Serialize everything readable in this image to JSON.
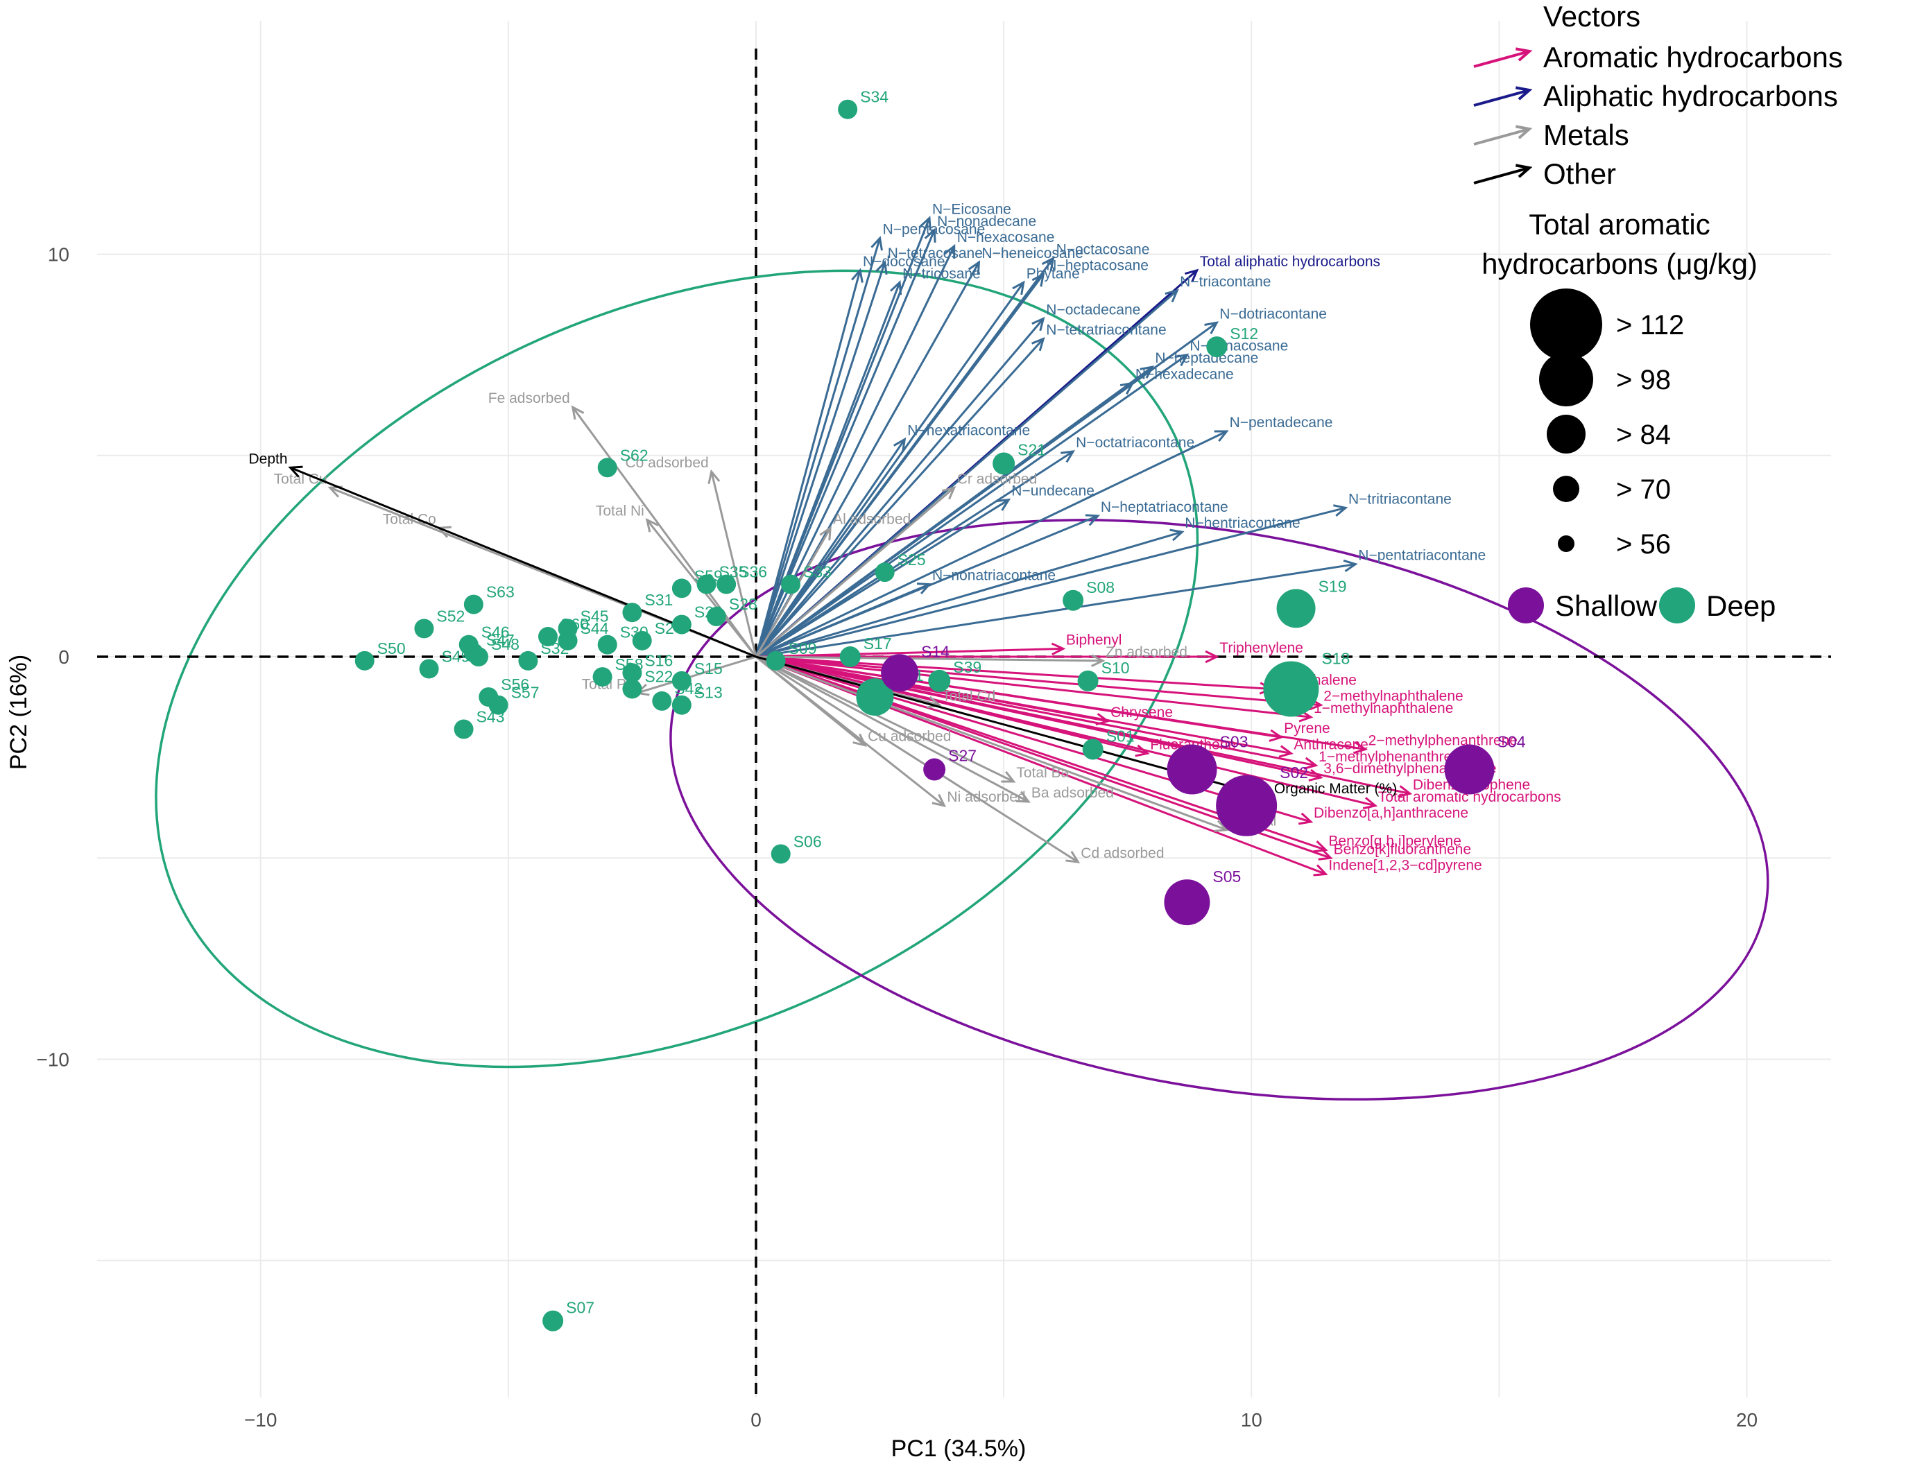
{
  "colors": {
    "aromatic": "#d6137a",
    "aliphatic_total": "#1a1a8a",
    "aliphatic": "#3a6b94",
    "metal": "#9a9a9a",
    "other": "#000000",
    "shallow": "#7b119b",
    "deep": "#22a57a"
  },
  "chart_data": {
    "type": "scatter",
    "title": "",
    "xlabel": "PC1 (34.5%)",
    "ylabel": "PC2 (16%)",
    "xlim": [
      -13.3,
      21.7
    ],
    "ylim": [
      -18.4,
      15.8
    ],
    "xticks": [
      {
        "v": -10,
        "label": "−10"
      },
      {
        "v": 0,
        "label": "0"
      },
      {
        "v": 10,
        "label": "10"
      },
      {
        "v": 20,
        "label": "20"
      }
    ],
    "yticks": [
      {
        "v": -10,
        "label": "−10"
      },
      {
        "v": 0,
        "label": "0"
      },
      {
        "v": 10,
        "label": "10"
      }
    ],
    "minor_x": [
      -5,
      5,
      15
    ],
    "minor_y": [
      -15,
      -5,
      5
    ],
    "ellipses": [
      {
        "group": "deep",
        "cx": -1.6,
        "cy": -0.3,
        "rx": 11.1,
        "ry": 7.2,
        "angle": 25
      },
      {
        "group": "shallow",
        "cx": 9.35,
        "cy": -3.8,
        "rx": 11.2,
        "ry": 5.6,
        "angle": -10
      }
    ],
    "vectors": [
      {
        "label": "Total aliphatic hydrocarbons",
        "x": 8.9,
        "y": 9.6,
        "cat": "aliphatic_total"
      },
      {
        "label": "N−Eicosane",
        "x": 3.5,
        "y": 10.9,
        "cat": "aliphatic"
      },
      {
        "label": "N−nonadecane",
        "x": 3.6,
        "y": 10.6,
        "cat": "aliphatic"
      },
      {
        "label": "N−pentacosane",
        "x": 2.5,
        "y": 10.4,
        "cat": "aliphatic"
      },
      {
        "label": "N−hexacosane",
        "x": 4.0,
        "y": 10.2,
        "cat": "aliphatic"
      },
      {
        "label": "N−octacosane",
        "x": 6.0,
        "y": 9.9,
        "cat": "aliphatic"
      },
      {
        "label": "N−heneicosane",
        "x": 4.5,
        "y": 9.8,
        "cat": "aliphatic"
      },
      {
        "label": "N−tetracosane",
        "x": 2.6,
        "y": 9.8,
        "cat": "aliphatic"
      },
      {
        "label": "N−heptacosane",
        "x": 5.8,
        "y": 9.5,
        "cat": "aliphatic"
      },
      {
        "label": "N−docosane",
        "x": 2.1,
        "y": 9.6,
        "cat": "aliphatic"
      },
      {
        "label": "N−tricosane",
        "x": 2.9,
        "y": 9.3,
        "cat": "aliphatic"
      },
      {
        "label": "Phytane",
        "x": 5.4,
        "y": 9.3,
        "cat": "aliphatic"
      },
      {
        "label": "N−triacontane",
        "x": 8.5,
        "y": 9.1,
        "cat": "aliphatic"
      },
      {
        "label": "N−octadecane",
        "x": 5.8,
        "y": 8.4,
        "cat": "aliphatic"
      },
      {
        "label": "N−dotriacontane",
        "x": 9.3,
        "y": 8.3,
        "cat": "aliphatic"
      },
      {
        "label": "N−tetratriacontane",
        "x": 5.8,
        "y": 7.9,
        "cat": "aliphatic"
      },
      {
        "label": "N−nonacosane",
        "x": 8.7,
        "y": 7.5,
        "cat": "aliphatic"
      },
      {
        "label": "N−heptadecane",
        "x": 8.0,
        "y": 7.2,
        "cat": "aliphatic"
      },
      {
        "label": "N−hexadecane",
        "x": 7.6,
        "y": 6.8,
        "cat": "aliphatic"
      },
      {
        "label": "N−hexatriacontane",
        "x": 3.0,
        "y": 5.4,
        "cat": "aliphatic"
      },
      {
        "label": "N−pentadecane",
        "x": 9.5,
        "y": 5.6,
        "cat": "aliphatic"
      },
      {
        "label": "N−octatriacontane",
        "x": 6.4,
        "y": 5.1,
        "cat": "aliphatic"
      },
      {
        "label": "N−undecane",
        "x": 5.1,
        "y": 3.9,
        "cat": "aliphatic"
      },
      {
        "label": "N−heptatriacontane",
        "x": 6.9,
        "y": 3.5,
        "cat": "aliphatic"
      },
      {
        "label": "N−hentriacontane",
        "x": 8.6,
        "y": 3.1,
        "cat": "aliphatic"
      },
      {
        "label": "N−tritriacontane",
        "x": 11.9,
        "y": 3.7,
        "cat": "aliphatic"
      },
      {
        "label": "N−pentatriacontane",
        "x": 12.1,
        "y": 2.3,
        "cat": "aliphatic"
      },
      {
        "label": "N−nonatriacontane",
        "x": 3.5,
        "y": 1.8,
        "cat": "aliphatic"
      },
      {
        "label": "Biphenyl",
        "x": 6.2,
        "y": 0.2,
        "cat": "aromatic"
      },
      {
        "label": "Triphenylene",
        "x": 9.3,
        "y": 0.0,
        "cat": "aromatic"
      },
      {
        "label": "Naphthalene",
        "x": 10.4,
        "y": -0.8,
        "cat": "aromatic"
      },
      {
        "label": "2−methylnaphthalene",
        "x": 11.4,
        "y": -1.2,
        "cat": "aromatic"
      },
      {
        "label": "1−methylnaphthalene",
        "x": 11.2,
        "y": -1.5,
        "cat": "aromatic"
      },
      {
        "label": "Chrysene",
        "x": 7.1,
        "y": -1.6,
        "cat": "aromatic"
      },
      {
        "label": "Pyrene",
        "x": 10.6,
        "y": -2.0,
        "cat": "aromatic"
      },
      {
        "label": "2−methylphenanthrene",
        "x": 12.3,
        "y": -2.3,
        "cat": "aromatic"
      },
      {
        "label": "Anthracene",
        "x": 10.8,
        "y": -2.4,
        "cat": "aromatic"
      },
      {
        "label": "1−methylphenanthrene",
        "x": 11.3,
        "y": -2.7,
        "cat": "aromatic"
      },
      {
        "label": "Fluoranthene",
        "x": 7.9,
        "y": -2.4,
        "cat": "aromatic"
      },
      {
        "label": "3,6−dimethylphenanthrene",
        "x": 11.4,
        "y": -3.0,
        "cat": "aromatic"
      },
      {
        "label": "Dibenzothiophene",
        "x": 13.2,
        "y": -3.4,
        "cat": "aromatic"
      },
      {
        "label": "Total aromatic hydrocarbons",
        "x": 12.5,
        "y": -3.7,
        "cat": "aromatic"
      },
      {
        "label": "Dibenzo[a,h]anthracene",
        "x": 11.2,
        "y": -4.1,
        "cat": "aromatic"
      },
      {
        "label": "Benzo[g,h,i]perylene",
        "x": 11.5,
        "y": -4.8,
        "cat": "aromatic"
      },
      {
        "label": "Benzo[k]fluoranthene",
        "x": 11.6,
        "y": -5.0,
        "cat": "aromatic"
      },
      {
        "label": "Indene[1,2,3−cd]pyrene",
        "x": 11.5,
        "y": -5.4,
        "cat": "aromatic"
      },
      {
        "label": "Fe adsorbed",
        "x": -3.7,
        "y": 6.2,
        "cat": "metal"
      },
      {
        "label": "Total Cu",
        "x": -8.6,
        "y": 4.2,
        "cat": "metal"
      },
      {
        "label": "Total Co",
        "x": -6.4,
        "y": 3.2,
        "cat": "metal"
      },
      {
        "label": "Co adsorbed",
        "x": -0.9,
        "y": 4.6,
        "cat": "metal"
      },
      {
        "label": "Total Ni",
        "x": -2.2,
        "y": 3.4,
        "cat": "metal"
      },
      {
        "label": "Al adsorbed",
        "x": 1.5,
        "y": 3.2,
        "cat": "metal"
      },
      {
        "label": "Cr adsorbed",
        "x": 4.0,
        "y": 4.2,
        "cat": "metal"
      },
      {
        "label": "Total Pb",
        "x": -2.4,
        "y": -0.9,
        "cat": "metal"
      },
      {
        "label": "Zn adsorbed",
        "x": 7.0,
        "y": -0.1,
        "cat": "metal"
      },
      {
        "label": "Total Cd",
        "x": 3.7,
        "y": -1.2,
        "cat": "metal"
      },
      {
        "label": "Cu adsorbed",
        "x": 2.2,
        "y": -2.2,
        "cat": "metal"
      },
      {
        "label": "Ni adsorbed",
        "x": 3.8,
        "y": -3.7,
        "cat": "metal"
      },
      {
        "label": "Total Ba",
        "x": 5.2,
        "y": -3.1,
        "cat": "metal"
      },
      {
        "label": "Ba adsorbed",
        "x": 5.5,
        "y": -3.6,
        "cat": "metal"
      },
      {
        "label": "Cd adsorbed",
        "x": 6.5,
        "y": -5.1,
        "cat": "metal"
      },
      {
        "label": "Total Al",
        "x": 9.5,
        "y": -4.3,
        "cat": "metal"
      },
      {
        "label": "Depth",
        "x": -9.4,
        "y": 4.7,
        "cat": "other"
      },
      {
        "label": "Organic Matter (%)",
        "x": 10.4,
        "y": -3.5,
        "cat": "other"
      }
    ],
    "points": [
      {
        "label": "S34",
        "x": 1.85,
        "y": 13.6,
        "group": "deep",
        "taromatic": 60
      },
      {
        "label": "S12",
        "x": 9.3,
        "y": 7.7,
        "group": "deep",
        "taromatic": 62
      },
      {
        "label": "S62",
        "x": -3.0,
        "y": 4.7,
        "group": "deep",
        "taromatic": 60
      },
      {
        "label": "S21",
        "x": 5.0,
        "y": 4.8,
        "group": "deep",
        "taromatic": 64
      },
      {
        "label": "S63",
        "x": -5.7,
        "y": 1.3,
        "group": "deep",
        "taromatic": 60
      },
      {
        "label": "S52",
        "x": -6.7,
        "y": 0.7,
        "group": "deep",
        "taromatic": 60
      },
      {
        "label": "S46",
        "x": -5.8,
        "y": 0.3,
        "group": "deep",
        "taromatic": 60
      },
      {
        "label": "S47",
        "x": -5.7,
        "y": 0.1,
        "group": "deep",
        "taromatic": 60
      },
      {
        "label": "S48",
        "x": -5.6,
        "y": 0.0,
        "group": "deep",
        "taromatic": 60
      },
      {
        "label": "S49",
        "x": -6.6,
        "y": -0.3,
        "group": "deep",
        "taromatic": 60
      },
      {
        "label": "S50",
        "x": -7.9,
        "y": -0.1,
        "group": "deep",
        "taromatic": 60
      },
      {
        "label": "S45",
        "x": -3.8,
        "y": 0.7,
        "group": "deep",
        "taromatic": 60
      },
      {
        "label": "S60",
        "x": -4.2,
        "y": 0.5,
        "group": "deep",
        "taromatic": 60
      },
      {
        "label": "S44",
        "x": -3.8,
        "y": 0.4,
        "group": "deep",
        "taromatic": 60
      },
      {
        "label": "S32",
        "x": -4.6,
        "y": -0.1,
        "group": "deep",
        "taromatic": 60
      },
      {
        "label": "S30",
        "x": -3.0,
        "y": 0.3,
        "group": "deep",
        "taromatic": 60
      },
      {
        "label": "S58",
        "x": -3.1,
        "y": -0.5,
        "group": "deep",
        "taromatic": 60
      },
      {
        "label": "S56",
        "x": -5.4,
        "y": -1.0,
        "group": "deep",
        "taromatic": 60
      },
      {
        "label": "S57",
        "x": -5.2,
        "y": -1.2,
        "group": "deep",
        "taromatic": 60
      },
      {
        "label": "S43",
        "x": -5.9,
        "y": -1.8,
        "group": "deep",
        "taromatic": 60
      },
      {
        "label": "S31",
        "x": -2.5,
        "y": 1.1,
        "group": "deep",
        "taromatic": 60
      },
      {
        "label": "S24",
        "x": -2.3,
        "y": 0.4,
        "group": "deep",
        "taromatic": 60
      },
      {
        "label": "S16",
        "x": -2.5,
        "y": -0.4,
        "group": "deep",
        "taromatic": 60
      },
      {
        "label": "S22",
        "x": -2.5,
        "y": -0.8,
        "group": "deep",
        "taromatic": 60
      },
      {
        "label": "S42",
        "x": -1.9,
        "y": -1.1,
        "group": "deep",
        "taromatic": 60
      },
      {
        "label": "S13",
        "x": -1.5,
        "y": -1.2,
        "group": "deep",
        "taromatic": 60
      },
      {
        "label": "S15",
        "x": -1.5,
        "y": -0.6,
        "group": "deep",
        "taromatic": 60
      },
      {
        "label": "S59",
        "x": -1.5,
        "y": 1.7,
        "group": "deep",
        "taromatic": 60
      },
      {
        "label": "S35",
        "x": -1.0,
        "y": 1.8,
        "group": "deep",
        "taromatic": 60
      },
      {
        "label": "S36",
        "x": -0.6,
        "y": 1.8,
        "group": "deep",
        "taromatic": 60
      },
      {
        "label": "S28",
        "x": -0.8,
        "y": 1.0,
        "group": "deep",
        "taromatic": 60
      },
      {
        "label": "S20",
        "x": -1.5,
        "y": 0.8,
        "group": "deep",
        "taromatic": 60
      },
      {
        "label": "S33",
        "x": 0.7,
        "y": 1.8,
        "group": "deep",
        "taromatic": 60
      },
      {
        "label": "S25",
        "x": 2.6,
        "y": 2.1,
        "group": "deep",
        "taromatic": 60
      },
      {
        "label": "S08",
        "x": 6.4,
        "y": 1.4,
        "group": "deep",
        "taromatic": 62
      },
      {
        "label": "S19",
        "x": 10.9,
        "y": 1.2,
        "group": "deep",
        "taromatic": 88
      },
      {
        "label": "S18",
        "x": 10.8,
        "y": -0.8,
        "group": "deep",
        "taromatic": 112
      },
      {
        "label": "S17",
        "x": 1.9,
        "y": 0.0,
        "group": "deep",
        "taromatic": 62
      },
      {
        "label": "S09",
        "x": 0.4,
        "y": -0.1,
        "group": "deep",
        "taromatic": 60
      },
      {
        "label": "S11",
        "x": 2.4,
        "y": -1.0,
        "group": "deep",
        "taromatic": 86
      },
      {
        "label": "S39",
        "x": 3.7,
        "y": -0.6,
        "group": "deep",
        "taromatic": 64
      },
      {
        "label": "S10",
        "x": 6.7,
        "y": -0.6,
        "group": "deep",
        "taromatic": 62
      },
      {
        "label": "S01",
        "x": 6.8,
        "y": -2.3,
        "group": "deep",
        "taromatic": 62
      },
      {
        "label": "S06",
        "x": 0.5,
        "y": -4.9,
        "group": "deep",
        "taromatic": 60
      },
      {
        "label": "S07",
        "x": -4.1,
        "y": -16.5,
        "group": "deep",
        "taromatic": 62
      },
      {
        "label": "S14",
        "x": 2.9,
        "y": -0.4,
        "group": "shallow",
        "taromatic": 86
      },
      {
        "label": "S27",
        "x": 3.6,
        "y": -2.8,
        "group": "shallow",
        "taromatic": 64
      },
      {
        "label": "S03",
        "x": 8.8,
        "y": -2.8,
        "group": "shallow",
        "taromatic": 104
      },
      {
        "label": "S04",
        "x": 14.4,
        "y": -2.8,
        "group": "shallow",
        "taromatic": 104
      },
      {
        "label": "S02",
        "x": 9.9,
        "y": -3.7,
        "group": "shallow",
        "taromatic": 120
      },
      {
        "label": "S05",
        "x": 8.7,
        "y": -6.1,
        "group": "shallow",
        "taromatic": 98
      }
    ],
    "legend": {
      "vectors_title": "Vectors",
      "vector_items": [
        {
          "label": "Aromatic hydrocarbons",
          "cat": "aromatic"
        },
        {
          "label": "Aliphatic hydrocarbons",
          "cat": "aliphatic_total"
        },
        {
          "label": "Metals",
          "cat": "metal"
        },
        {
          "label": "Other",
          "cat": "other"
        }
      ],
      "size_title_1": "Total aromatic",
      "size_title_2": "hydrocarbons (μg/kg)",
      "size_items": [
        {
          "label": "> 112",
          "value": 112
        },
        {
          "label": "> 98",
          "value": 98
        },
        {
          "label": "> 84",
          "value": 84
        },
        {
          "label": "> 70",
          "value": 70
        },
        {
          "label": "> 56",
          "value": 56
        }
      ],
      "group_items": [
        {
          "label": "Shallow",
          "group": "shallow"
        },
        {
          "label": "Deep",
          "group": "deep"
        }
      ]
    }
  }
}
